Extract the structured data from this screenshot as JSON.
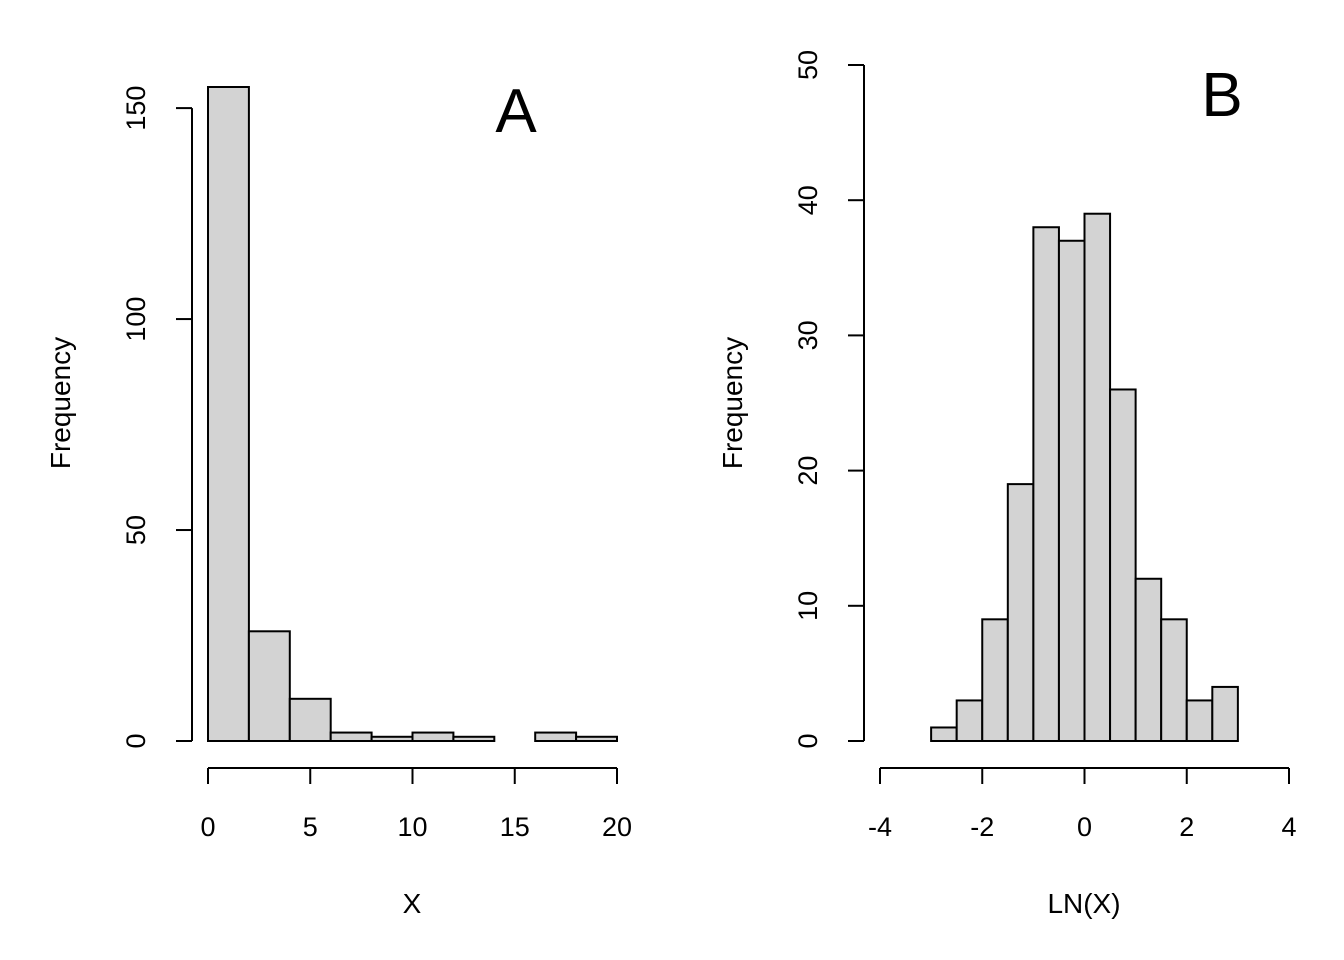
{
  "chart_data": [
    {
      "type": "bar",
      "panel_label": "A",
      "title": "",
      "xlabel": "X",
      "ylabel": "Frequency",
      "bin_edges": [
        0,
        2,
        4,
        6,
        8,
        10,
        12,
        14,
        16,
        18,
        20
      ],
      "values": [
        155,
        26,
        10,
        2,
        1,
        2,
        1,
        0,
        2,
        1
      ],
      "xlim": [
        0,
        20
      ],
      "ylim": [
        0,
        155
      ],
      "xticks": [
        0,
        5,
        10,
        15,
        20
      ],
      "yticks": [
        0,
        50,
        100,
        150
      ],
      "xtick_labels": [
        "0",
        "5",
        "10",
        "15",
        "20"
      ],
      "ytick_labels": [
        "0",
        "50",
        "100",
        "150"
      ],
      "grid": false,
      "bar_color": "#d3d3d3"
    },
    {
      "type": "bar",
      "panel_label": "B",
      "title": "",
      "xlabel": "LN(X)",
      "ylabel": "Frequency",
      "bin_edges": [
        -3,
        -2.5,
        -2,
        -1.5,
        -1,
        -0.5,
        0,
        0.5,
        1,
        1.5,
        2,
        2.5,
        3
      ],
      "values": [
        1,
        3,
        9,
        19,
        38,
        37,
        39,
        26,
        12,
        9,
        3,
        4
      ],
      "xlim": [
        -4,
        4
      ],
      "ylim": [
        0,
        50
      ],
      "xticks": [
        -4,
        -2,
        0,
        2,
        4
      ],
      "yticks": [
        0,
        10,
        20,
        30,
        40,
        50
      ],
      "xtick_labels": [
        "-4",
        "-2",
        "0",
        "2",
        "4"
      ],
      "ytick_labels": [
        "0",
        "10",
        "20",
        "30",
        "40",
        "50"
      ],
      "grid": false,
      "bar_color": "#d3d3d3"
    }
  ]
}
